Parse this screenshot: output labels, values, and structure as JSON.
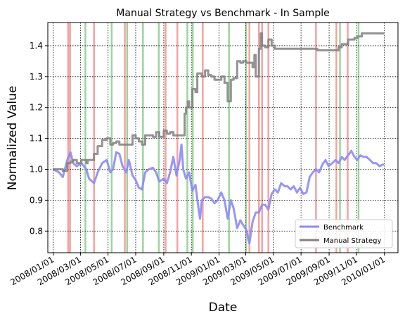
{
  "chart_data": {
    "type": "line",
    "title": "Manual Strategy vs Benchmark - In Sample",
    "xlabel": "Date",
    "ylabel": "Normalized Value",
    "xlim": [
      "2007-12-20",
      "2010-01-31"
    ],
    "ylim": [
      0.73,
      1.475
    ],
    "x_ticks": [
      "2008/01/01",
      "2008/03/01",
      "2008/05/01",
      "2008/07/01",
      "2008/09/01",
      "2008/11/01",
      "2009/01/01",
      "2009/03/01",
      "2009/05/01",
      "2009/07/01",
      "2009/09/01",
      "2009/11/01",
      "2010/01/01"
    ],
    "y_ticks": [
      0.8,
      0.9,
      1.0,
      1.1,
      1.2,
      1.3,
      1.4
    ],
    "grid": true,
    "legend_position": "lower-right",
    "series": [
      {
        "name": "Benchmark",
        "color": "#8b8bf5",
        "points": [
          [
            "2008-01-01",
            1.0
          ],
          [
            "2008-01-14",
            0.99
          ],
          [
            "2008-01-22",
            0.975
          ],
          [
            "2008-02-01",
            1.03
          ],
          [
            "2008-02-08",
            1.055
          ],
          [
            "2008-02-14",
            1.02
          ],
          [
            "2008-02-22",
            1.01
          ],
          [
            "2008-03-03",
            1.02
          ],
          [
            "2008-03-14",
            1.0
          ],
          [
            "2008-03-20",
            0.97
          ],
          [
            "2008-03-31",
            0.955
          ],
          [
            "2008-04-08",
            0.99
          ],
          [
            "2008-04-18",
            1.02
          ],
          [
            "2008-04-28",
            1.03
          ],
          [
            "2008-05-06",
            0.99
          ],
          [
            "2008-05-12",
            1.0
          ],
          [
            "2008-05-19",
            1.055
          ],
          [
            "2008-05-26",
            1.05
          ],
          [
            "2008-06-02",
            1.01
          ],
          [
            "2008-06-10",
            0.99
          ],
          [
            "2008-06-16",
            1.03
          ],
          [
            "2008-06-24",
            0.98
          ],
          [
            "2008-07-01",
            0.965
          ],
          [
            "2008-07-08",
            0.94
          ],
          [
            "2008-07-15",
            0.935
          ],
          [
            "2008-07-22",
            0.99
          ],
          [
            "2008-07-30",
            1.0
          ],
          [
            "2008-08-08",
            1.005
          ],
          [
            "2008-08-15",
            0.99
          ],
          [
            "2008-08-22",
            0.96
          ],
          [
            "2008-09-01",
            0.97
          ],
          [
            "2008-09-08",
            0.955
          ],
          [
            "2008-09-15",
            0.99
          ],
          [
            "2008-09-22",
            1.04
          ],
          [
            "2008-09-29",
            0.98
          ],
          [
            "2008-10-06",
            1.03
          ],
          [
            "2008-10-10",
            1.08
          ],
          [
            "2008-10-14",
            1.0
          ],
          [
            "2008-10-20",
            0.97
          ],
          [
            "2008-10-27",
            0.99
          ],
          [
            "2008-11-03",
            0.93
          ],
          [
            "2008-11-10",
            0.95
          ],
          [
            "2008-11-17",
            0.87
          ],
          [
            "2008-11-20",
            0.84
          ],
          [
            "2008-11-24",
            0.9
          ],
          [
            "2008-12-01",
            0.91
          ],
          [
            "2008-12-08",
            0.91
          ],
          [
            "2008-12-15",
            0.905
          ],
          [
            "2008-12-22",
            0.89
          ],
          [
            "2008-12-29",
            0.9
          ],
          [
            "2009-01-06",
            0.925
          ],
          [
            "2009-01-13",
            0.9
          ],
          [
            "2009-01-20",
            0.84
          ],
          [
            "2009-01-27",
            0.9
          ],
          [
            "2009-02-02",
            0.875
          ],
          [
            "2009-02-10",
            0.81
          ],
          [
            "2009-02-17",
            0.835
          ],
          [
            "2009-02-23",
            0.82
          ],
          [
            "2009-03-02",
            0.805
          ],
          [
            "2009-03-09",
            0.76
          ],
          [
            "2009-03-16",
            0.83
          ],
          [
            "2009-03-23",
            0.86
          ],
          [
            "2009-03-30",
            0.86
          ],
          [
            "2009-04-06",
            0.885
          ],
          [
            "2009-04-13",
            0.885
          ],
          [
            "2009-04-20",
            0.87
          ],
          [
            "2009-04-27",
            0.92
          ],
          [
            "2009-05-04",
            0.935
          ],
          [
            "2009-05-11",
            0.925
          ],
          [
            "2009-05-18",
            0.955
          ],
          [
            "2009-05-26",
            0.945
          ],
          [
            "2009-06-01",
            0.945
          ],
          [
            "2009-06-08",
            0.935
          ],
          [
            "2009-06-15",
            0.945
          ],
          [
            "2009-06-22",
            0.925
          ],
          [
            "2009-06-29",
            0.94
          ],
          [
            "2009-07-06",
            0.92
          ],
          [
            "2009-07-13",
            0.925
          ],
          [
            "2009-07-20",
            0.975
          ],
          [
            "2009-07-27",
            0.99
          ],
          [
            "2009-08-03",
            1.0
          ],
          [
            "2009-08-10",
            0.99
          ],
          [
            "2009-08-17",
            1.015
          ],
          [
            "2009-08-24",
            1.03
          ],
          [
            "2009-08-31",
            1.01
          ],
          [
            "2009-09-08",
            1.02
          ],
          [
            "2009-09-15",
            1.03
          ],
          [
            "2009-09-22",
            1.02
          ],
          [
            "2009-09-29",
            1.04
          ],
          [
            "2009-10-05",
            1.03
          ],
          [
            "2009-10-13",
            1.045
          ],
          [
            "2009-10-20",
            1.06
          ],
          [
            "2009-10-27",
            1.04
          ],
          [
            "2009-11-02",
            1.03
          ],
          [
            "2009-11-09",
            1.045
          ],
          [
            "2009-11-16",
            1.04
          ],
          [
            "2009-11-23",
            1.04
          ],
          [
            "2009-11-30",
            1.03
          ],
          [
            "2009-12-07",
            1.02
          ],
          [
            "2009-12-14",
            1.02
          ],
          [
            "2009-12-21",
            1.01
          ],
          [
            "2009-12-28",
            1.015
          ],
          [
            "2009-12-31",
            1.015
          ]
        ]
      },
      {
        "name": "Manual Strategy",
        "color": "#808080",
        "points": [
          [
            "2008-01-01",
            1.0
          ],
          [
            "2008-01-14",
            1.0
          ],
          [
            "2008-01-22",
            0.995
          ],
          [
            "2008-02-01",
            1.02
          ],
          [
            "2008-02-08",
            1.025
          ],
          [
            "2008-02-14",
            1.03
          ],
          [
            "2008-02-22",
            1.02
          ],
          [
            "2008-03-03",
            1.03
          ],
          [
            "2008-03-14",
            1.02
          ],
          [
            "2008-03-17",
            1.03
          ],
          [
            "2008-03-20",
            1.03
          ],
          [
            "2008-03-31",
            1.05
          ],
          [
            "2008-04-08",
            1.075
          ],
          [
            "2008-04-18",
            1.095
          ],
          [
            "2008-04-28",
            1.1
          ],
          [
            "2008-05-06",
            1.08
          ],
          [
            "2008-05-12",
            1.085
          ],
          [
            "2008-05-19",
            1.09
          ],
          [
            "2008-05-26",
            1.08
          ],
          [
            "2008-06-02",
            1.08
          ],
          [
            "2008-06-10",
            1.08
          ],
          [
            "2008-06-16",
            1.08
          ],
          [
            "2008-06-24",
            1.11
          ],
          [
            "2008-07-01",
            1.1
          ],
          [
            "2008-07-08",
            1.09
          ],
          [
            "2008-07-15",
            1.08
          ],
          [
            "2008-07-22",
            1.11
          ],
          [
            "2008-08-01",
            1.11
          ],
          [
            "2008-08-08",
            1.105
          ],
          [
            "2008-08-15",
            1.12
          ],
          [
            "2008-08-22",
            1.105
          ],
          [
            "2008-09-01",
            1.125
          ],
          [
            "2008-09-08",
            1.115
          ],
          [
            "2008-09-15",
            1.12
          ],
          [
            "2008-09-22",
            1.11
          ],
          [
            "2008-09-29",
            1.11
          ],
          [
            "2008-10-06",
            1.11
          ],
          [
            "2008-10-14",
            1.11
          ],
          [
            "2008-10-17",
            1.18
          ],
          [
            "2008-10-20",
            1.2
          ],
          [
            "2008-10-24",
            1.22
          ],
          [
            "2008-10-27",
            1.2
          ],
          [
            "2008-11-03",
            1.26
          ],
          [
            "2008-11-10",
            1.25
          ],
          [
            "2008-11-14",
            1.31
          ],
          [
            "2008-11-20",
            1.31
          ],
          [
            "2008-11-24",
            1.3
          ],
          [
            "2008-12-01",
            1.32
          ],
          [
            "2008-12-08",
            1.305
          ],
          [
            "2008-12-15",
            1.3
          ],
          [
            "2008-12-22",
            1.29
          ],
          [
            "2008-12-29",
            1.29
          ],
          [
            "2009-01-06",
            1.3
          ],
          [
            "2009-01-13",
            1.28
          ],
          [
            "2009-01-20",
            1.22
          ],
          [
            "2009-01-27",
            1.29
          ],
          [
            "2009-02-02",
            1.295
          ],
          [
            "2009-02-10",
            1.35
          ],
          [
            "2009-02-17",
            1.345
          ],
          [
            "2009-02-23",
            1.35
          ],
          [
            "2009-03-02",
            1.345
          ],
          [
            "2009-03-09",
            1.345
          ],
          [
            "2009-03-16",
            1.33
          ],
          [
            "2009-03-20",
            1.37
          ],
          [
            "2009-03-23",
            1.3
          ],
          [
            "2009-03-30",
            1.39
          ],
          [
            "2009-04-03",
            1.44
          ],
          [
            "2009-04-06",
            1.4
          ],
          [
            "2009-04-13",
            1.395
          ],
          [
            "2009-04-20",
            1.42
          ],
          [
            "2009-04-27",
            1.4
          ],
          [
            "2009-05-04",
            1.39
          ],
          [
            "2009-05-11",
            1.39
          ],
          [
            "2009-06-01",
            1.39
          ],
          [
            "2009-07-01",
            1.39
          ],
          [
            "2009-08-03",
            1.39
          ],
          [
            "2009-08-06",
            1.385
          ],
          [
            "2009-09-01",
            1.385
          ],
          [
            "2009-09-15",
            1.385
          ],
          [
            "2009-09-22",
            1.395
          ],
          [
            "2009-09-29",
            1.405
          ],
          [
            "2009-10-05",
            1.405
          ],
          [
            "2009-10-13",
            1.42
          ],
          [
            "2009-10-20",
            1.42
          ],
          [
            "2009-10-27",
            1.425
          ],
          [
            "2009-11-02",
            1.43
          ],
          [
            "2009-11-09",
            1.43
          ],
          [
            "2009-11-12",
            1.44
          ],
          [
            "2009-11-23",
            1.44
          ],
          [
            "2009-12-07",
            1.44
          ],
          [
            "2009-12-31",
            1.44
          ]
        ]
      }
    ],
    "vertical_markers": {
      "short_color": "#f07070",
      "long_color": "#5cb85c",
      "short": [
        "2008-02-03",
        "2008-02-07",
        "2008-03-31",
        "2008-06-07",
        "2008-09-05",
        "2008-10-01",
        "2008-11-26",
        "2009-03-09",
        "2009-03-30",
        "2009-04-06",
        "2009-04-20",
        "2009-08-03",
        "2009-09-17",
        "2009-10-12"
      ],
      "long": [
        "2008-03-12",
        "2008-05-09",
        "2008-06-12",
        "2008-07-17",
        "2008-08-21",
        "2008-10-23",
        "2008-11-04",
        "2009-01-23",
        "2009-03-02",
        "2009-09-25",
        "2009-11-05"
      ]
    }
  }
}
